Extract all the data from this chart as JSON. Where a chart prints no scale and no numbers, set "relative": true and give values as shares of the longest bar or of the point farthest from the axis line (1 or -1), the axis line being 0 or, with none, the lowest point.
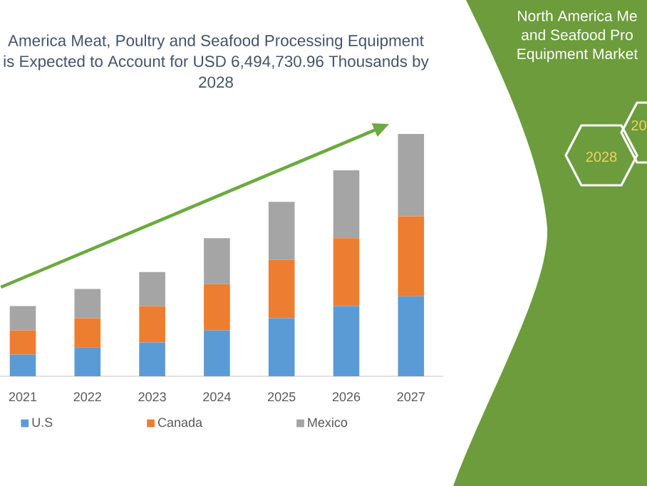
{
  "chart_data": [
    {
      "type": "bar",
      "title": "America Meat, Poultry and Seafood Processing Equipment is Expected to Account for USD 6,494,730.96 Thousands by 2028",
      "categories": [
        "2021",
        "2022",
        "2023",
        "2024",
        "2025",
        "2026",
        "2027"
      ],
      "series": [
        {
          "name": "U.S",
          "color": "#5b9bd5",
          "values": [
            0.09,
            0.12,
            0.14,
            0.19,
            0.24,
            0.29,
            0.33
          ]
        },
        {
          "name": "Canada",
          "color": "#ed7d31",
          "values": [
            0.1,
            0.12,
            0.15,
            0.19,
            0.24,
            0.28,
            0.33
          ]
        },
        {
          "name": "Mexico",
          "color": "#a5a5a5",
          "values": [
            0.1,
            0.12,
            0.14,
            0.19,
            0.24,
            0.28,
            0.34
          ]
        }
      ],
      "stacked": true,
      "relative": true,
      "legend": "bottom"
    },
    {
      "type": "other",
      "title": "North America Me and Seafood Pro Equipment Market",
      "annotations": [
        "2028",
        "20"
      ]
    }
  ]
}
